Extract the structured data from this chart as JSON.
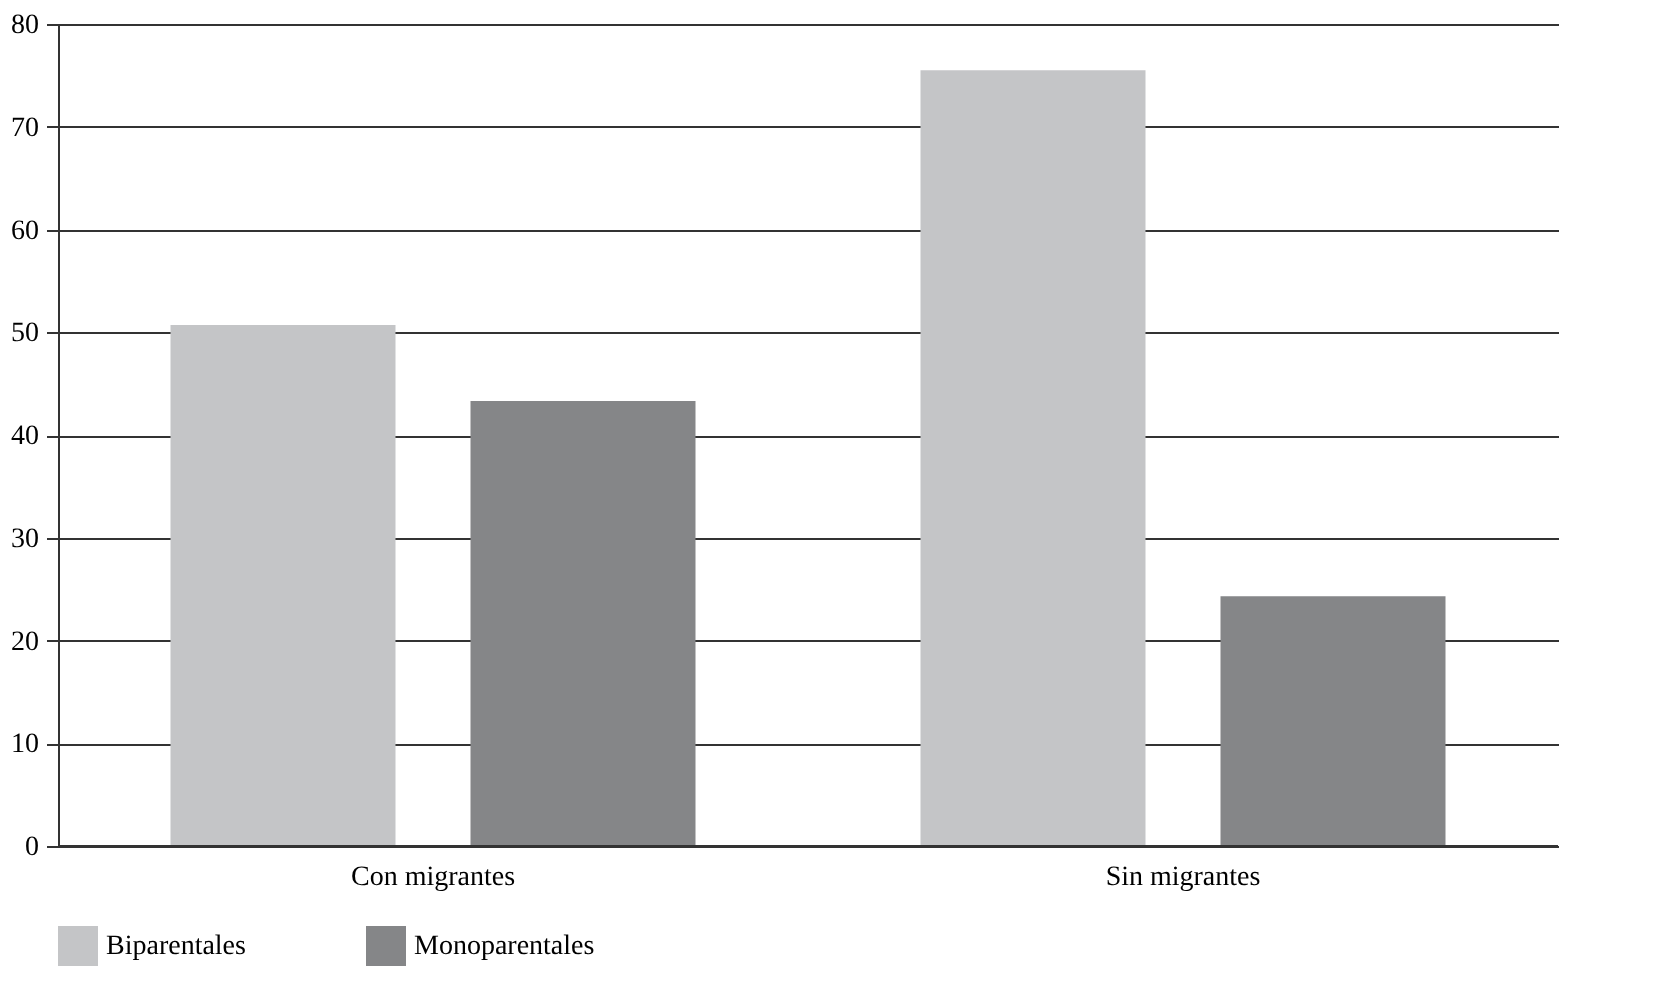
{
  "chart_data": {
    "type": "bar",
    "categories": [
      "Con migrantes",
      "Sin migrantes"
    ],
    "series": [
      {
        "name": "Biparentales",
        "color": "#c4c5c7",
        "values": [
          50.7,
          75.5
        ]
      },
      {
        "name": "Monoparentales",
        "color": "#858688",
        "values": [
          43.3,
          24.3
        ]
      }
    ],
    "ylim": [
      0,
      80
    ],
    "yticks": [
      0,
      10,
      20,
      30,
      40,
      50,
      60,
      70,
      80
    ],
    "grid": "y",
    "legend": "bottom"
  }
}
